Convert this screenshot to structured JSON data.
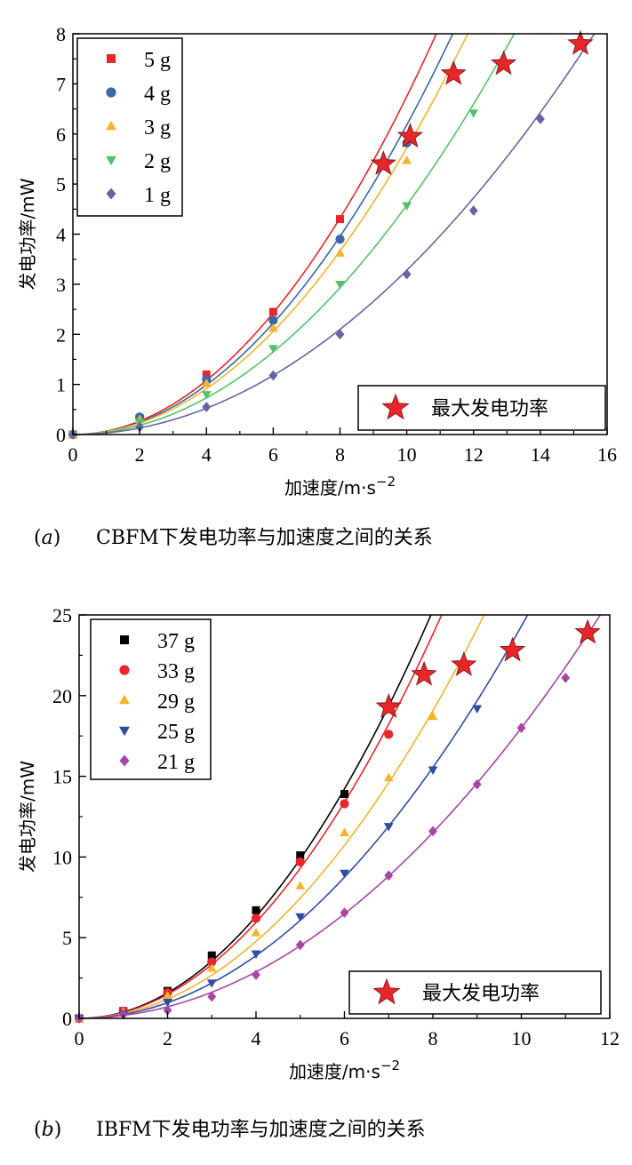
{
  "chart_data": [
    {
      "type": "scatter",
      "caption_letter": "a",
      "caption_text": "CBFM下发电功率与加速度之间的关系",
      "xlabel": "加速度/m·s",
      "xlabel_exp": "−2",
      "ylabel": "发电功率/mW",
      "xlim": [
        0,
        16
      ],
      "ylim": [
        0,
        8
      ],
      "xticks": [
        0,
        2,
        4,
        6,
        8,
        10,
        12,
        14,
        16
      ],
      "yticks": [
        0,
        1,
        2,
        3,
        4,
        5,
        6,
        7,
        8
      ],
      "grid": false,
      "legend_position": "top-left",
      "max_power_legend": "最大发电功率",
      "max_power_legend_position": "bottom-right",
      "series": [
        {
          "name": "5 g",
          "marker": "square",
          "color": "#e8262a",
          "fit_k": 0.0675,
          "x": [
            0,
            2,
            4,
            6,
            8
          ],
          "y": [
            0,
            0.33,
            1.2,
            2.45,
            4.3
          ]
        },
        {
          "name": "4 g",
          "marker": "circle",
          "color": "#3a68a8",
          "fit_k": 0.0618,
          "x": [
            0,
            2,
            4,
            6,
            8,
            10
          ],
          "y": [
            0,
            0.35,
            1.1,
            2.28,
            3.9,
            5.82
          ]
        },
        {
          "name": "3 g",
          "marker": "triangle-up",
          "color": "#f3b42c",
          "fit_k": 0.0572,
          "x": [
            0,
            2,
            4,
            6,
            8,
            10
          ],
          "y": [
            0,
            0.3,
            1.02,
            2.12,
            3.62,
            5.47
          ]
        },
        {
          "name": "2 g",
          "marker": "triangle-down",
          "color": "#55c26a",
          "fit_k": 0.0458,
          "x": [
            0,
            2,
            4,
            6,
            8,
            10,
            12
          ],
          "y": [
            0,
            0.25,
            0.8,
            1.72,
            3.0,
            4.57,
            6.42
          ]
        },
        {
          "name": "1 g",
          "marker": "diamond",
          "color": "#6564a6",
          "fit_k": 0.0328,
          "x": [
            0,
            2,
            4,
            6,
            8,
            10,
            12,
            14
          ],
          "y": [
            0,
            0.15,
            0.55,
            1.18,
            2.0,
            3.2,
            4.47,
            6.3
          ]
        }
      ],
      "max_power_points": {
        "x": [
          9.3,
          10.1,
          11.4,
          12.9,
          15.2
        ],
        "y": [
          5.4,
          5.95,
          7.2,
          7.4,
          7.8
        ]
      }
    },
    {
      "type": "scatter",
      "caption_letter": "b",
      "caption_text": "IBFM下发电功率与加速度之间的关系",
      "xlabel": "加速度/m·s",
      "xlabel_exp": "−2",
      "ylabel": "发电功率/mW",
      "xlim": [
        0,
        12
      ],
      "ylim": [
        0,
        25
      ],
      "xticks": [
        0,
        2,
        4,
        6,
        8,
        10,
        12
      ],
      "yticks": [
        0,
        5,
        10,
        15,
        20,
        25
      ],
      "grid": false,
      "legend_position": "top-left",
      "max_power_legend": "最大发电功率",
      "max_power_legend_position": "bottom-right",
      "series": [
        {
          "name": "37 g",
          "marker": "square",
          "color": "#000000",
          "fit_k": 0.395,
          "x": [
            0,
            1,
            2,
            3,
            4,
            5,
            6
          ],
          "y": [
            0,
            0.45,
            1.7,
            3.9,
            6.7,
            10.1,
            13.9
          ]
        },
        {
          "name": "33 g",
          "marker": "circle",
          "color": "#e8262a",
          "fit_k": 0.372,
          "x": [
            0,
            1,
            2,
            3,
            4,
            5,
            6,
            7
          ],
          "y": [
            0,
            0.45,
            1.6,
            3.5,
            6.2,
            9.7,
            13.3,
            17.6
          ]
        },
        {
          "name": "29 g",
          "marker": "triangle-up",
          "color": "#f3b42c",
          "fit_k": 0.298,
          "x": [
            0,
            1,
            2,
            3,
            4,
            5,
            6,
            7,
            8
          ],
          "y": [
            0,
            0.4,
            1.4,
            3.1,
            5.3,
            8.2,
            11.5,
            14.9,
            18.7
          ]
        },
        {
          "name": "25 g",
          "marker": "triangle-down",
          "color": "#2f4ea3",
          "fit_k": 0.243,
          "x": [
            0,
            1,
            2,
            3,
            4,
            5,
            6,
            7,
            8,
            9
          ],
          "y": [
            0,
            0.3,
            1.0,
            2.2,
            4.0,
            6.3,
            9.0,
            11.9,
            15.4,
            19.2
          ]
        },
        {
          "name": "21 g",
          "marker": "diamond",
          "color": "#a646a6",
          "fit_k": 0.18,
          "x": [
            0,
            1,
            2,
            3,
            4,
            5,
            6,
            7,
            8,
            9,
            10,
            11
          ],
          "y": [
            0,
            0.25,
            0.5,
            1.35,
            2.7,
            4.55,
            6.55,
            8.85,
            11.6,
            14.5,
            18.0,
            21.1
          ]
        }
      ],
      "max_power_points": {
        "x": [
          7.0,
          7.8,
          8.7,
          9.8,
          11.5
        ],
        "y": [
          19.3,
          21.3,
          21.9,
          22.8,
          23.9
        ]
      }
    }
  ]
}
